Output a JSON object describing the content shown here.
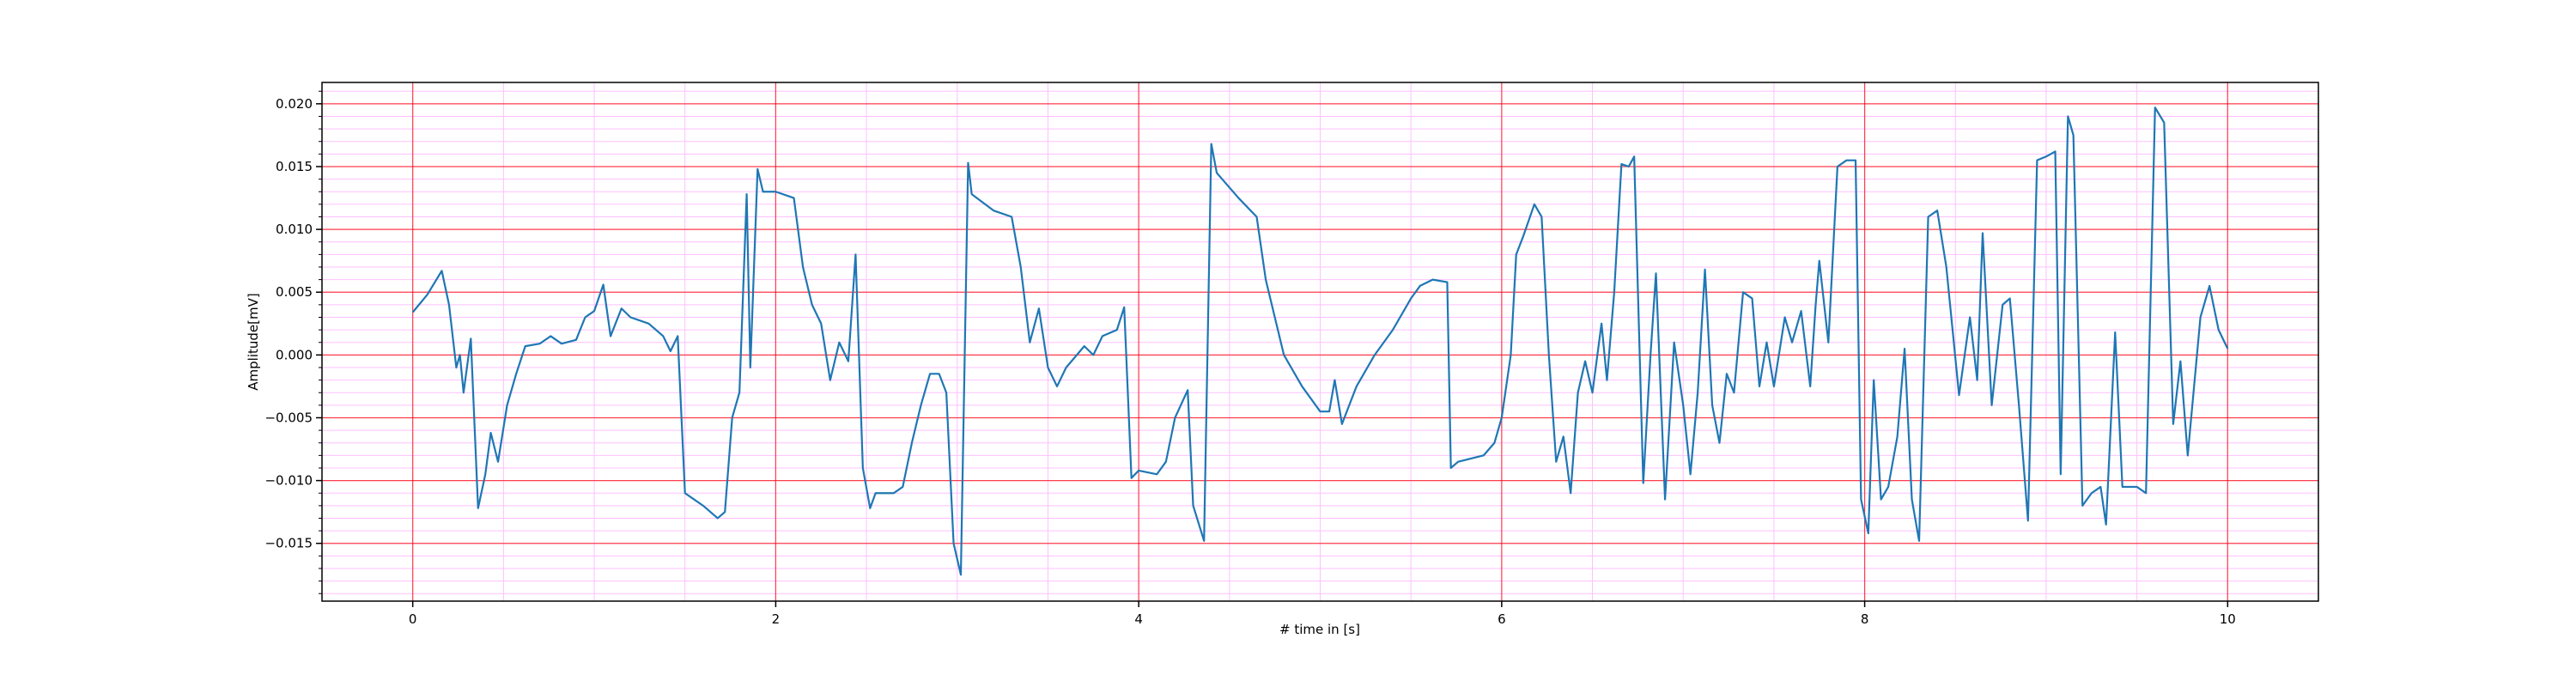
{
  "chart_data": {
    "type": "line",
    "xlabel": "# time in [s]",
    "ylabel": "Amplitude[mV]",
    "x": [
      0,
      0.08,
      0.16,
      0.2,
      0.24,
      0.26,
      0.28,
      0.32,
      0.36,
      0.4,
      0.43,
      0.47,
      0.52,
      0.57,
      0.62,
      0.7,
      0.76,
      0.82,
      0.9,
      0.95,
      1.0,
      1.05,
      1.09,
      1.15,
      1.2,
      1.3,
      1.38,
      1.42,
      1.46,
      1.5,
      1.55,
      1.6,
      1.68,
      1.72,
      1.76,
      1.8,
      1.84,
      1.86,
      1.9,
      1.93,
      2.0,
      2.1,
      2.15,
      2.2,
      2.25,
      2.3,
      2.35,
      2.4,
      2.44,
      2.48,
      2.52,
      2.55,
      2.65,
      2.7,
      2.75,
      2.8,
      2.85,
      2.9,
      2.94,
      2.98,
      3.02,
      3.06,
      3.08,
      3.2,
      3.3,
      3.35,
      3.4,
      3.45,
      3.5,
      3.55,
      3.6,
      3.7,
      3.75,
      3.8,
      3.88,
      3.92,
      3.96,
      4.0,
      4.1,
      4.15,
      4.2,
      4.27,
      4.3,
      4.36,
      4.4,
      4.43,
      4.55,
      4.65,
      4.7,
      4.8,
      4.9,
      5.0,
      5.05,
      5.08,
      5.12,
      5.2,
      5.3,
      5.4,
      5.5,
      5.55,
      5.62,
      5.7,
      5.72,
      5.76,
      5.9,
      5.96,
      6.0,
      6.05,
      6.08,
      6.12,
      6.18,
      6.22,
      6.26,
      6.3,
      6.34,
      6.38,
      6.42,
      6.46,
      6.5,
      6.55,
      6.58,
      6.62,
      6.66,
      6.7,
      6.73,
      6.78,
      6.82,
      6.85,
      6.9,
      6.95,
      7.0,
      7.04,
      7.08,
      7.12,
      7.16,
      7.2,
      7.24,
      7.28,
      7.33,
      7.38,
      7.42,
      7.46,
      7.5,
      7.56,
      7.6,
      7.65,
      7.7,
      7.73,
      7.75,
      7.8,
      7.85,
      7.9,
      7.95,
      7.98,
      8.02,
      8.05,
      8.09,
      8.13,
      8.18,
      8.22,
      8.26,
      8.3,
      8.35,
      8.4,
      8.45,
      8.52,
      8.58,
      8.62,
      8.65,
      8.7,
      8.76,
      8.8,
      8.85,
      8.9,
      8.95,
      9.0,
      9.05,
      9.08,
      9.12,
      9.15,
      9.2,
      9.25,
      9.3,
      9.33,
      9.38,
      9.42,
      9.5,
      9.55,
      9.6,
      9.65,
      9.7,
      9.74,
      9.78,
      9.85,
      9.9,
      9.95,
      10.0
    ],
    "values": [
      0.0034,
      0.0048,
      0.0067,
      0.004,
      -0.001,
      0.0,
      -0.003,
      0.0013,
      -0.0122,
      -0.0095,
      -0.0062,
      -0.0085,
      -0.004,
      -0.0015,
      0.0007,
      0.0009,
      0.0015,
      0.0009,
      0.0012,
      0.003,
      0.0035,
      0.0056,
      0.0015,
      0.0037,
      0.003,
      0.0025,
      0.0015,
      0.0003,
      0.0015,
      -0.011,
      -0.0115,
      -0.012,
      -0.013,
      -0.0125,
      -0.005,
      -0.003,
      0.0128,
      -0.001,
      0.0148,
      0.013,
      0.013,
      0.0125,
      0.007,
      0.004,
      0.0025,
      -0.002,
      0.001,
      -0.0005,
      0.008,
      -0.009,
      -0.0122,
      -0.011,
      -0.011,
      -0.0105,
      -0.007,
      -0.004,
      -0.0015,
      -0.0015,
      -0.003,
      -0.015,
      -0.0175,
      0.0153,
      0.0128,
      0.0115,
      0.011,
      0.007,
      0.001,
      0.0037,
      -0.001,
      -0.0025,
      -0.001,
      0.0007,
      0.0,
      0.0015,
      0.002,
      0.0038,
      -0.0098,
      -0.0092,
      -0.0095,
      -0.0085,
      -0.005,
      -0.0028,
      -0.012,
      -0.0148,
      0.0168,
      0.0145,
      0.0125,
      0.011,
      0.006,
      0.0,
      -0.0025,
      -0.0045,
      -0.0045,
      -0.002,
      -0.0055,
      -0.0025,
      0.0,
      0.002,
      0.0045,
      0.0055,
      0.006,
      0.0058,
      -0.009,
      -0.0085,
      -0.008,
      -0.007,
      -0.005,
      0.0,
      0.008,
      0.0095,
      0.012,
      0.011,
      0.0,
      -0.0085,
      -0.0065,
      -0.011,
      -0.003,
      -0.0005,
      -0.003,
      0.0025,
      -0.002,
      0.005,
      0.0152,
      0.015,
      0.0158,
      -0.0102,
      0.0,
      0.0065,
      -0.0115,
      0.001,
      -0.004,
      -0.0095,
      -0.003,
      0.0068,
      -0.004,
      -0.007,
      -0.0015,
      -0.003,
      0.005,
      0.0045,
      -0.0025,
      0.001,
      -0.0025,
      0.003,
      0.001,
      0.0035,
      -0.0025,
      0.004,
      0.0075,
      0.001,
      0.015,
      0.0155,
      0.0155,
      -0.0115,
      -0.0142,
      -0.002,
      -0.0115,
      -0.0105,
      -0.0065,
      0.0005,
      -0.0115,
      -0.0148,
      0.011,
      0.0115,
      0.007,
      -0.0032,
      0.003,
      -0.002,
      0.0097,
      -0.004,
      0.004,
      0.0045,
      -0.004,
      -0.0132,
      0.0155,
      0.0158,
      0.0162,
      -0.0095,
      0.019,
      0.0175,
      -0.012,
      -0.011,
      -0.0105,
      -0.0135,
      0.0018,
      -0.0105,
      -0.0105,
      -0.011,
      0.0197,
      0.0185,
      -0.0055,
      -0.0005,
      -0.008,
      0.003,
      0.0055,
      0.002,
      0.0005
    ],
    "color": "#1f77b4",
    "xlim": [
      -0.5,
      10.5
    ],
    "ylim": [
      -0.0196,
      0.0217
    ],
    "xticks": [
      0,
      2,
      4,
      6,
      8,
      10
    ],
    "yticks": [
      {
        "value": -0.015,
        "label": "−0.015"
      },
      {
        "value": -0.01,
        "label": "−0.010"
      },
      {
        "value": -0.005,
        "label": "−0.005"
      },
      {
        "value": 0,
        "label": "0.000"
      },
      {
        "value": 0.005,
        "label": "0.005"
      },
      {
        "value": 0.01,
        "label": "0.010"
      },
      {
        "value": 0.015,
        "label": "0.015"
      },
      {
        "value": 0.02,
        "label": "0.020"
      }
    ],
    "xminorticks": [
      -0.5,
      0,
      0.5,
      1,
      1.5,
      2,
      2.5,
      3,
      3.5,
      4,
      4.5,
      5,
      5.5,
      6,
      6.5,
      7,
      7.5,
      8,
      8.5,
      9,
      9.5,
      10,
      10.5
    ],
    "yminorticks": [
      -0.019,
      -0.018,
      -0.017,
      -0.016,
      -0.015,
      -0.014,
      -0.013,
      -0.012,
      -0.011,
      -0.01,
      -0.009,
      -0.008,
      -0.007,
      -0.006,
      -0.005,
      -0.004,
      -0.003,
      -0.002,
      -0.001,
      0,
      0.001,
      0.002,
      0.003,
      0.004,
      0.005,
      0.006,
      0.007,
      0.008,
      0.009,
      0.01,
      0.011,
      0.012,
      0.013,
      0.014,
      0.015,
      0.016,
      0.017,
      0.018,
      0.019,
      0.02,
      0.021
    ],
    "grid": true,
    "grid_color": "#ff0000",
    "minor_grid": true,
    "minor_grid_color": "#ffc0ff"
  }
}
